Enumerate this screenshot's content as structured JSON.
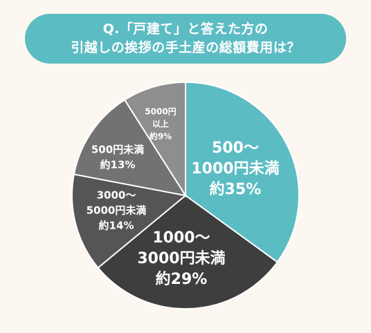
{
  "header": {
    "title_line1": "Q.「戸建て」と答えた方の",
    "title_line2": "引越しの挨拶の手土産の総額費用は？"
  },
  "colors": {
    "accent": "#5cbcc3",
    "background": "#fcf8f1",
    "slice_dark": "#3e3e3e",
    "slice_mid": "#555555",
    "slice_gray": "#727272",
    "slice_light": "#8e8e8e",
    "label_text": "#ffffff"
  },
  "chart_data": {
    "type": "pie",
    "title": "",
    "slices": [
      {
        "lines": [
          "500〜",
          "1000円未満",
          "約35%"
        ],
        "value": 35,
        "color": "#5cbcc3"
      },
      {
        "lines": [
          "1000〜",
          "3000円未満",
          "約29%"
        ],
        "value": 29,
        "color": "#3e3e3e"
      },
      {
        "lines": [
          "3000〜",
          "5000円未満",
          "約14%"
        ],
        "value": 14,
        "color": "#555555"
      },
      {
        "lines": [
          "500円未満",
          "約13%"
        ],
        "value": 13,
        "color": "#727272"
      },
      {
        "lines": [
          "5000円",
          "以上",
          "約9%"
        ],
        "value": 9,
        "color": "#8e8e8e"
      }
    ]
  }
}
